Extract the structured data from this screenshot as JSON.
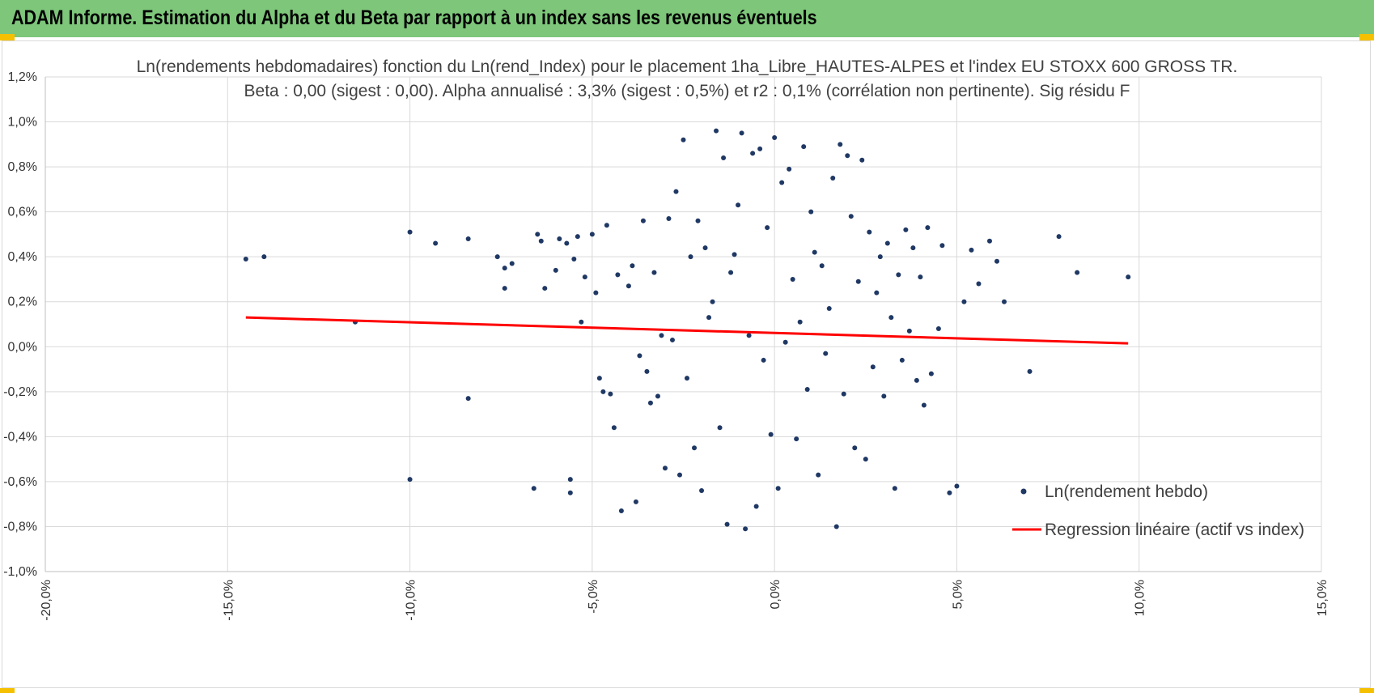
{
  "header": {
    "title": "ADAM Informe. Estimation du Alpha et du Beta par rapport à un index sans les revenus éventuels",
    "bar_color": "#7dc67a",
    "corner_color": "#f5c000"
  },
  "chart_data": {
    "type": "scatter",
    "title": "Ln(rendements hebdomadaires) fonction du Ln(rend_Index) pour le placement 1ha_Libre_HAUTES-ALPES et l'index EU STOXX 600 GROSS TR.",
    "subtitle": "Beta : 0,00 (sigest : 0,00).  Alpha annualisé : 3,3% (sigest : 0,5%) et r2 : 0,1% (corrélation non pertinente). Sig résidu F",
    "xlabel": "",
    "ylabel": "",
    "xlim": [
      -20,
      15
    ],
    "ylim": [
      -1.0,
      1.2
    ],
    "x_ticks": [
      -20,
      -15,
      -10,
      -5,
      0,
      5,
      10,
      15
    ],
    "x_tick_labels": [
      "-20,0%",
      "-15,0%",
      "-10,0%",
      "-5,0%",
      "0,0%",
      "5,0%",
      "10,0%",
      "15,0%"
    ],
    "y_ticks": [
      -1.0,
      -0.8,
      -0.6,
      -0.4,
      -0.2,
      0.0,
      0.2,
      0.4,
      0.6,
      0.8,
      1.0,
      1.2
    ],
    "y_tick_labels": [
      "-1,0%",
      "-0,8%",
      "-0,6%",
      "-0,4%",
      "-0,2%",
      "0,0%",
      "0,2%",
      "0,4%",
      "0,6%",
      "0,8%",
      "1,0%",
      "1,2%"
    ],
    "grid": true,
    "legend_position": "bottom-right",
    "series": [
      {
        "name": "Ln(rendement hebdo)",
        "kind": "scatter",
        "color": "#1f3864",
        "x": [
          -14.5,
          -14.0,
          -11.5,
          -10.0,
          -10.0,
          -9.3,
          -8.4,
          -8.4,
          -7.6,
          -7.4,
          -7.4,
          -7.2,
          -6.6,
          -6.5,
          -6.4,
          -6.3,
          -6.0,
          -5.9,
          -5.7,
          -5.6,
          -5.6,
          -5.5,
          -5.4,
          -5.3,
          -5.2,
          -5.0,
          -4.9,
          -4.8,
          -4.7,
          -4.6,
          -4.5,
          -4.4,
          -4.3,
          -4.2,
          -4.0,
          -3.9,
          -3.8,
          -3.7,
          -3.6,
          -3.5,
          -3.4,
          -3.3,
          -3.2,
          -3.1,
          -3.0,
          -2.9,
          -2.8,
          -2.7,
          -2.6,
          -2.5,
          -2.4,
          -2.3,
          -2.2,
          -2.1,
          -2.0,
          -1.9,
          -1.8,
          -1.7,
          -1.6,
          -1.5,
          -1.4,
          -1.3,
          -1.2,
          -1.1,
          -1.0,
          -0.9,
          -0.8,
          -0.7,
          -0.6,
          -0.5,
          -0.4,
          -0.3,
          -0.2,
          -0.1,
          0.0,
          0.1,
          0.2,
          0.3,
          0.4,
          0.5,
          0.6,
          0.7,
          0.8,
          0.9,
          1.0,
          1.1,
          1.2,
          1.3,
          1.4,
          1.5,
          1.6,
          1.7,
          1.8,
          1.9,
          2.0,
          2.1,
          2.2,
          2.3,
          2.4,
          2.5,
          2.6,
          2.7,
          2.8,
          2.9,
          3.0,
          3.1,
          3.2,
          3.3,
          3.4,
          3.5,
          3.6,
          3.7,
          3.8,
          3.9,
          4.0,
          4.1,
          4.2,
          4.3,
          4.5,
          4.6,
          4.8,
          5.0,
          5.2,
          5.4,
          5.6,
          5.9,
          6.1,
          6.3,
          7.0,
          7.8,
          8.3,
          9.7
        ],
        "y": [
          0.39,
          0.4,
          0.11,
          0.51,
          -0.59,
          0.46,
          0.48,
          -0.23,
          0.4,
          0.35,
          0.26,
          0.37,
          -0.63,
          0.5,
          0.47,
          0.26,
          0.34,
          0.48,
          0.46,
          -0.65,
          -0.59,
          0.39,
          0.49,
          0.11,
          0.31,
          0.5,
          0.24,
          -0.14,
          -0.2,
          0.54,
          -0.21,
          -0.36,
          0.32,
          -0.73,
          0.27,
          0.36,
          -0.69,
          -0.04,
          0.56,
          -0.11,
          -0.25,
          0.33,
          -0.22,
          0.05,
          -0.54,
          0.57,
          0.03,
          0.69,
          -0.57,
          0.92,
          -0.14,
          0.4,
          -0.45,
          0.56,
          -0.64,
          0.44,
          0.13,
          0.2,
          0.96,
          -0.36,
          0.84,
          -0.79,
          0.33,
          0.41,
          0.63,
          0.95,
          -0.81,
          0.05,
          0.86,
          -0.71,
          0.88,
          -0.06,
          0.53,
          -0.39,
          0.93,
          -0.63,
          0.73,
          0.02,
          0.79,
          0.3,
          -0.41,
          0.11,
          0.89,
          -0.19,
          0.6,
          0.42,
          -0.57,
          0.36,
          -0.03,
          0.17,
          0.75,
          -0.8,
          0.9,
          -0.21,
          0.85,
          0.58,
          -0.45,
          0.29,
          0.83,
          -0.5,
          0.51,
          -0.09,
          0.24,
          0.4,
          -0.22,
          0.46,
          0.13,
          -0.63,
          0.32,
          -0.06,
          0.52,
          0.07,
          0.44,
          -0.15,
          0.31,
          -0.26,
          0.53,
          -0.12,
          0.08,
          0.45,
          -0.65,
          -0.62,
          0.2,
          0.43,
          0.28,
          0.47,
          0.38,
          0.2,
          -0.11,
          0.49,
          0.33,
          0.31
        ]
      },
      {
        "name": "Regression linéaire (actif vs index)",
        "kind": "line",
        "color": "#ff0000",
        "x": [
          -14.5,
          9.7
        ],
        "y": [
          0.13,
          0.015
        ]
      }
    ]
  }
}
